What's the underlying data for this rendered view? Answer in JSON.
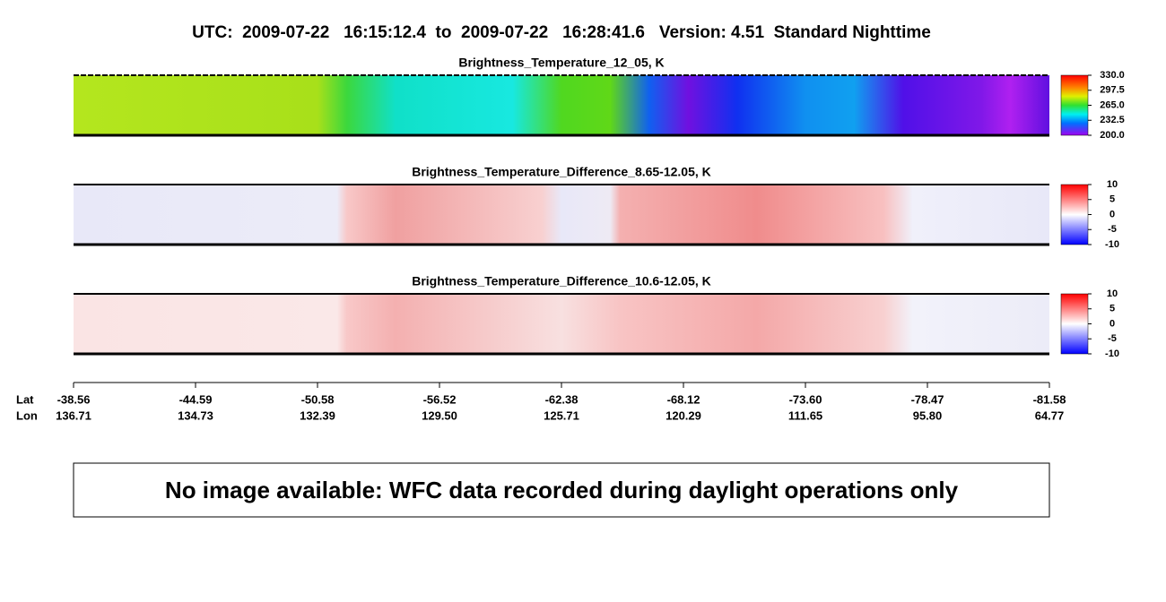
{
  "title": "UTC:  2009-07-22   16:15:12.4  to  2009-07-22   16:28:41.6   Version: 4.51  Standard Nighttime",
  "panels": [
    {
      "title": "Brightness_Temperature_12_05, K",
      "colorbar": {
        "lim": [
          200,
          330
        ],
        "ticks": [
          {
            "value": 330,
            "label": "330.0"
          },
          {
            "value": 297.5,
            "label": "297.5"
          },
          {
            "value": 265,
            "label": "265.0"
          },
          {
            "value": 232.5,
            "label": "232.5"
          },
          {
            "value": 200,
            "label": "200.0"
          }
        ]
      }
    },
    {
      "title": "Brightness_Temperature_Difference_8.65-12.05, K",
      "colorbar": {
        "lim": [
          -10,
          10
        ],
        "ticks": [
          10,
          5,
          0,
          -5,
          -10
        ]
      }
    },
    {
      "title": "Brightness_Temperature_Difference_10.6-12.05, K",
      "colorbar": {
        "lim": [
          -10,
          10
        ],
        "ticks": [
          10,
          5,
          0,
          -5,
          -10
        ]
      }
    }
  ],
  "axis": {
    "lat_label": "Lat",
    "lon_label": "Lon",
    "lat": [
      "-38.56",
      "-44.59",
      "-50.58",
      "-56.52",
      "-62.38",
      "-68.12",
      "-73.60",
      "-78.47",
      "-81.58"
    ],
    "lon": [
      "136.71",
      "134.73",
      "132.39",
      "129.50",
      "125.71",
      "120.29",
      "111.65",
      "95.80",
      "64.77"
    ]
  },
  "message": "No image available: WFC data recorded during daylight operations only"
}
